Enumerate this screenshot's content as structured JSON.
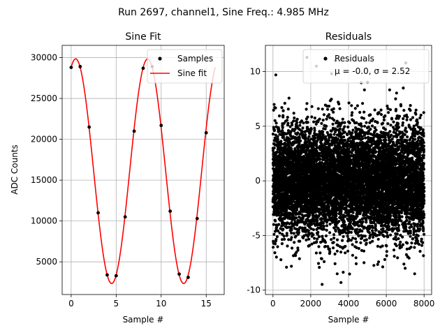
{
  "suptitle": "Run 2697, channel1, Sine Freq.: 4.985 MHz",
  "chart_data": [
    {
      "type": "scatter",
      "title": "Sine Fit",
      "xlabel": "Sample #",
      "ylabel": "ADC Counts",
      "xlim": [
        -1.0,
        17.0
      ],
      "ylim": [
        1000,
        31500
      ],
      "xticks": [
        0,
        5,
        10,
        15
      ],
      "yticks": [
        5000,
        10000,
        15000,
        20000,
        25000,
        30000
      ],
      "grid": true,
      "legend_position": "top-right",
      "series": [
        {
          "name": "Samples",
          "kind": "points",
          "color": "#000000",
          "x": [
            0,
            1,
            2,
            3,
            4,
            5,
            6,
            7,
            8,
            9,
            10,
            11,
            12,
            13,
            14,
            15
          ],
          "y": [
            28800,
            28900,
            21500,
            11000,
            3400,
            3300,
            10500,
            21000,
            28700,
            28900,
            21700,
            11200,
            3500,
            3100,
            10300,
            20800
          ]
        },
        {
          "name": "Sine fit",
          "kind": "line",
          "color": "#ff0000",
          "function": "sine",
          "offset": 16100,
          "amplitude": 13750,
          "period": 8.0,
          "peak_x": 0.5,
          "x_range": [
            0,
            16
          ]
        }
      ]
    },
    {
      "type": "scatter",
      "title": "Residuals",
      "xlabel": "Sample #",
      "xlim": [
        -400,
        8400
      ],
      "ylim": [
        -10.4,
        12.4
      ],
      "xticks": [
        0,
        2000,
        4000,
        6000,
        8000
      ],
      "yticks": [
        -10,
        -5,
        0,
        5,
        10
      ],
      "grid": true,
      "legend_position": "top-right",
      "series": [
        {
          "name": "Residuals",
          "color": "#000000",
          "count": 8000,
          "mean": -0.0,
          "sigma": 2.52,
          "x_range": [
            0,
            8000
          ],
          "outliers": [
            {
              "x": 150,
              "y": 9.7
            },
            {
              "x": 2300,
              "y": 10.5
            },
            {
              "x": 3300,
              "y": 11.0
            },
            {
              "x": 1800,
              "y": 11.3
            },
            {
              "x": 3600,
              "y": -9.3
            },
            {
              "x": 3400,
              "y": -8.5
            },
            {
              "x": 7000,
              "y": -8.0
            },
            {
              "x": 7500,
              "y": -8.5
            },
            {
              "x": 6900,
              "y": 8.5
            },
            {
              "x": 3100,
              "y": 9.8
            }
          ]
        }
      ],
      "legend_line2": "μ = -0.0, σ = 2.52"
    }
  ]
}
